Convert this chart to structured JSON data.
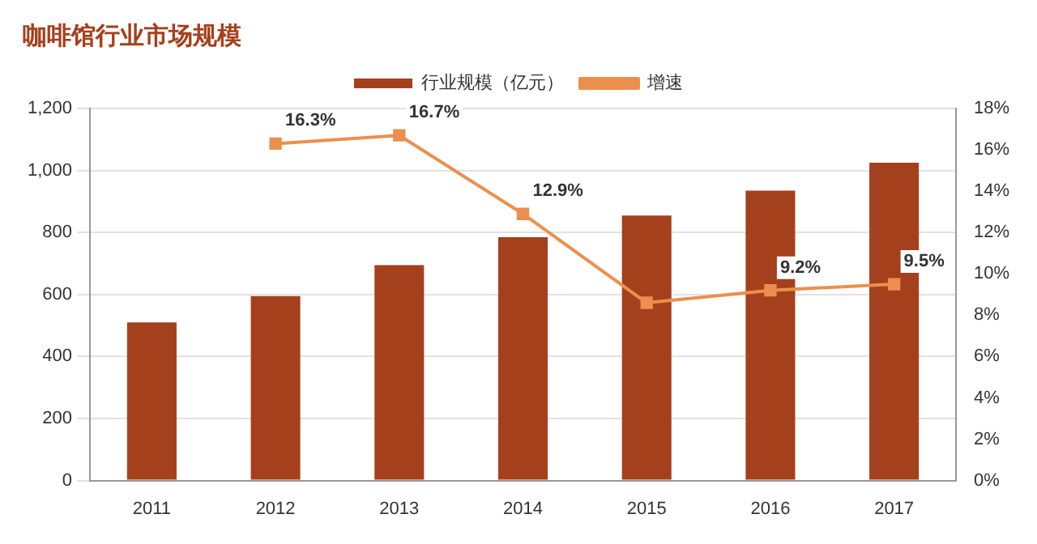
{
  "chart_data": {
    "type": "bar",
    "title": "咖啡馆行业市场规模",
    "categories": [
      "2011",
      "2012",
      "2013",
      "2014",
      "2015",
      "2016",
      "2017"
    ],
    "series": [
      {
        "name": "行业规模（亿元）",
        "color": "#a5401c",
        "values": [
          510,
          595,
          695,
          785,
          855,
          935,
          1025
        ]
      },
      {
        "name": "增速",
        "type": "line",
        "axis": "y2",
        "color": "#ec8f4e",
        "values": [
          null,
          16.3,
          16.7,
          12.9,
          8.6,
          9.2,
          9.5
        ],
        "value_labels": [
          null,
          "16.3%",
          "16.7%",
          "12.9%",
          null,
          "9.2%",
          "9.5%"
        ]
      }
    ],
    "ylim": [
      0,
      1200
    ],
    "yticks": [
      {
        "value": 0,
        "label": "0"
      },
      {
        "value": 200,
        "label": "200"
      },
      {
        "value": 400,
        "label": "400"
      },
      {
        "value": 600,
        "label": "600"
      },
      {
        "value": 800,
        "label": "800"
      },
      {
        "value": 1000,
        "label": "1,000"
      },
      {
        "value": 1200,
        "label": "1,200"
      }
    ],
    "y2lim": [
      0,
      18
    ],
    "y2ticks": [
      {
        "value": 0,
        "label": "0%"
      },
      {
        "value": 2,
        "label": "2%"
      },
      {
        "value": 4,
        "label": "4%"
      },
      {
        "value": 6,
        "label": "6%"
      },
      {
        "value": 8,
        "label": "8%"
      },
      {
        "value": 10,
        "label": "10%"
      },
      {
        "value": 12,
        "label": "12%"
      },
      {
        "value": 14,
        "label": "14%"
      },
      {
        "value": 16,
        "label": "16%"
      },
      {
        "value": 18,
        "label": "18%"
      }
    ],
    "grid": "y",
    "legend": "top",
    "marker": "square",
    "line_style": "solid"
  }
}
